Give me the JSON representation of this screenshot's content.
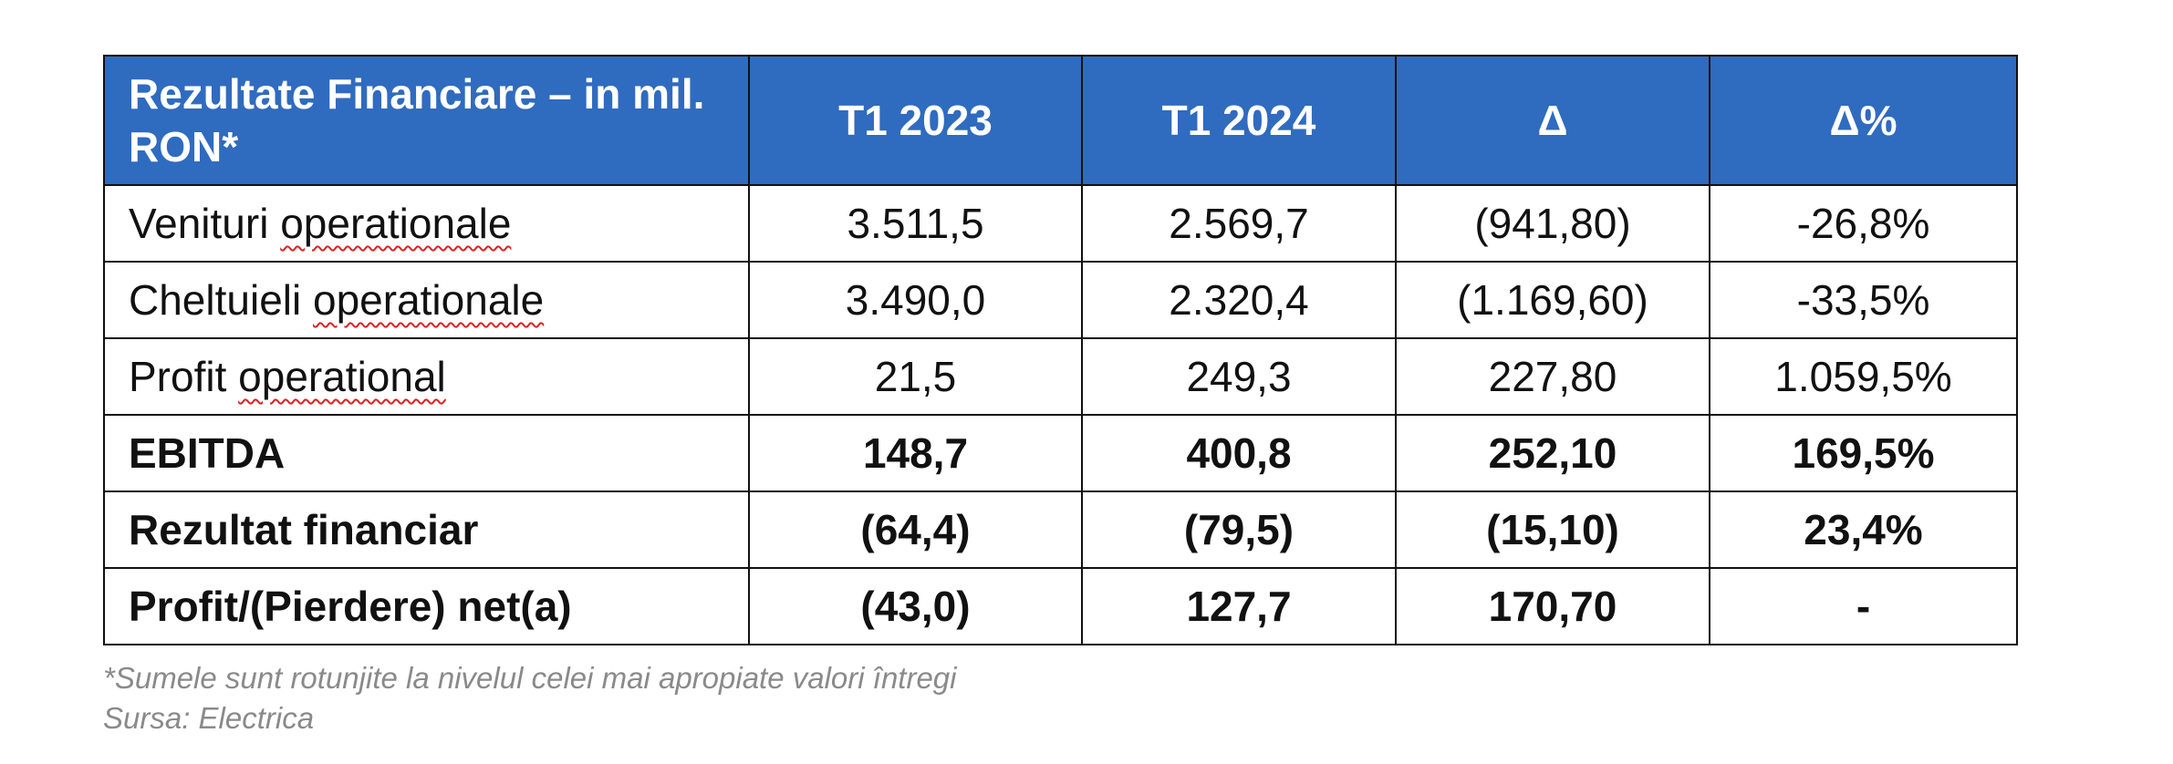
{
  "table": {
    "header": {
      "label": "Rezultate Financiare – in mil. RON*",
      "col1": "T1 2023",
      "col2": "T1 2024",
      "col3": "Δ",
      "col4": "Δ%"
    },
    "rows": [
      {
        "pre": "Venituri ",
        "underlined": "operationale",
        "t1_2023": "3.511,5",
        "t1_2024": "2.569,7",
        "delta": "(941,80)",
        "delta_pct": "-26,8%",
        "bold": false
      },
      {
        "pre": "Cheltuieli ",
        "underlined": "operationale",
        "t1_2023": "3.490,0",
        "t1_2024": "2.320,4",
        "delta": "(1.169,60)",
        "delta_pct": "-33,5%",
        "bold": false
      },
      {
        "pre": "Profit ",
        "underlined": "operational",
        "t1_2023": "21,5",
        "t1_2024": "249,3",
        "delta": "227,80",
        "delta_pct": "1.059,5%",
        "bold": false
      },
      {
        "label": "EBITDA",
        "t1_2023": "148,7",
        "t1_2024": "400,8",
        "delta": "252,10",
        "delta_pct": "169,5%",
        "bold": true
      },
      {
        "label": "Rezultat financiar",
        "t1_2023": "(64,4)",
        "t1_2024": "(79,5)",
        "delta": "(15,10)",
        "delta_pct": "23,4%",
        "bold": true
      },
      {
        "label": "Profit/(Pierdere) net(a)",
        "t1_2023": "(43,0)",
        "t1_2024": "127,7",
        "delta": "170,70",
        "delta_pct": "-",
        "bold": true
      }
    ]
  },
  "footnote": "*Sumele sunt rotunjite la nivelul celei mai apropiate valori întregi",
  "source": "Sursa: Electrica",
  "colors": {
    "header_bg": "#2f6bbf",
    "header_text": "#ffffff",
    "note_text": "#8a8a8a",
    "spellcheck_squiggle": "#dd2222"
  }
}
